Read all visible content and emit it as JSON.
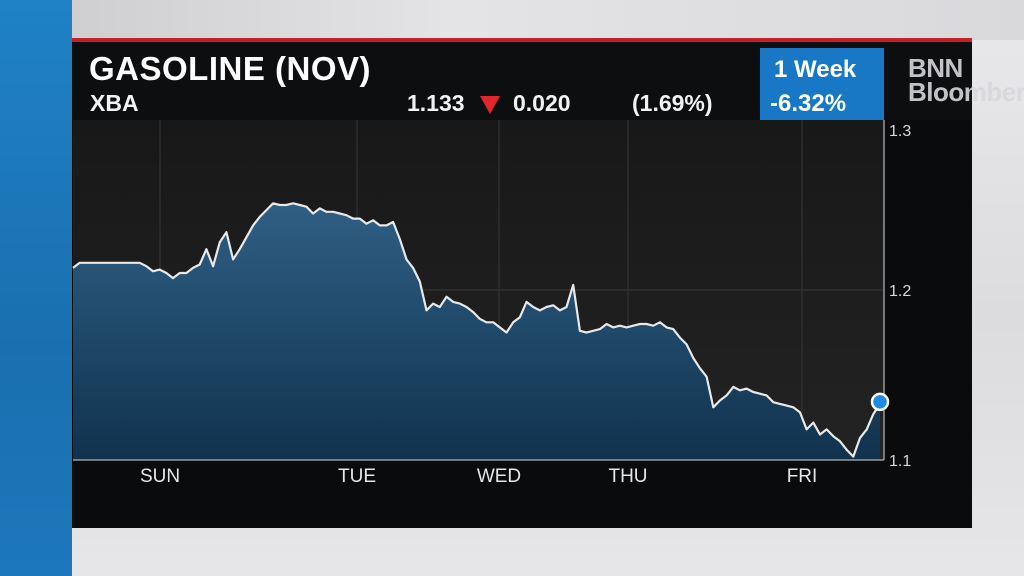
{
  "header": {
    "title": "GASOLINE (NOV)",
    "ticker": "XBA",
    "price": "1.133",
    "change": "0.020",
    "change_pct": "(1.69%)",
    "direction_icon": "down-arrow-icon",
    "period_label": "1 Week",
    "period_change": "-6.32%"
  },
  "logo": {
    "line1": "BNN",
    "line2": "Bloomberg"
  },
  "colors": {
    "accent_blue": "#1878c6",
    "down_red": "#e0262b",
    "line": "#e8e8e8"
  },
  "chart_data": {
    "type": "area",
    "x_labels": [
      "SUN",
      "TUE",
      "WED",
      "THU",
      "FRI"
    ],
    "y_ticks": [
      1.1,
      1.2,
      1.3
    ],
    "ylim": [
      1.1,
      1.3
    ],
    "grid": true,
    "series": [
      {
        "values": [
          1.213,
          1.216,
          1.216,
          1.216,
          1.216,
          1.216,
          1.216,
          1.216,
          1.216,
          1.216,
          1.216,
          1.214,
          1.211,
          1.212,
          1.21,
          1.207,
          1.21,
          1.21,
          1.213,
          1.215,
          1.224,
          1.214,
          1.228,
          1.234,
          1.218,
          1.224,
          1.231,
          1.238,
          1.243,
          1.247,
          1.251,
          1.25,
          1.25,
          1.251,
          1.25,
          1.249,
          1.245,
          1.248,
          1.246,
          1.246,
          1.245,
          1.244,
          1.242,
          1.242,
          1.239,
          1.241,
          1.238,
          1.238,
          1.24,
          1.23,
          1.218,
          1.213,
          1.205,
          1.188,
          1.192,
          1.19,
          1.196,
          1.193,
          1.192,
          1.19,
          1.187,
          1.183,
          1.181,
          1.181,
          1.178,
          1.175,
          1.181,
          1.184,
          1.193,
          1.19,
          1.188,
          1.19,
          1.191,
          1.188,
          1.19,
          1.203,
          1.176,
          1.175,
          1.176,
          1.177,
          1.18,
          1.178,
          1.179,
          1.178,
          1.179,
          1.18,
          1.18,
          1.179,
          1.181,
          1.178,
          1.177,
          1.172,
          1.168,
          1.16,
          1.154,
          1.149,
          1.131,
          1.135,
          1.138,
          1.143,
          1.141,
          1.142,
          1.14,
          1.139,
          1.138,
          1.134,
          1.133,
          1.132,
          1.131,
          1.128,
          1.118,
          1.122,
          1.115,
          1.118,
          1.114,
          1.111,
          1.106,
          1.102,
          1.113,
          1.118,
          1.127,
          1.133
        ]
      }
    ]
  }
}
